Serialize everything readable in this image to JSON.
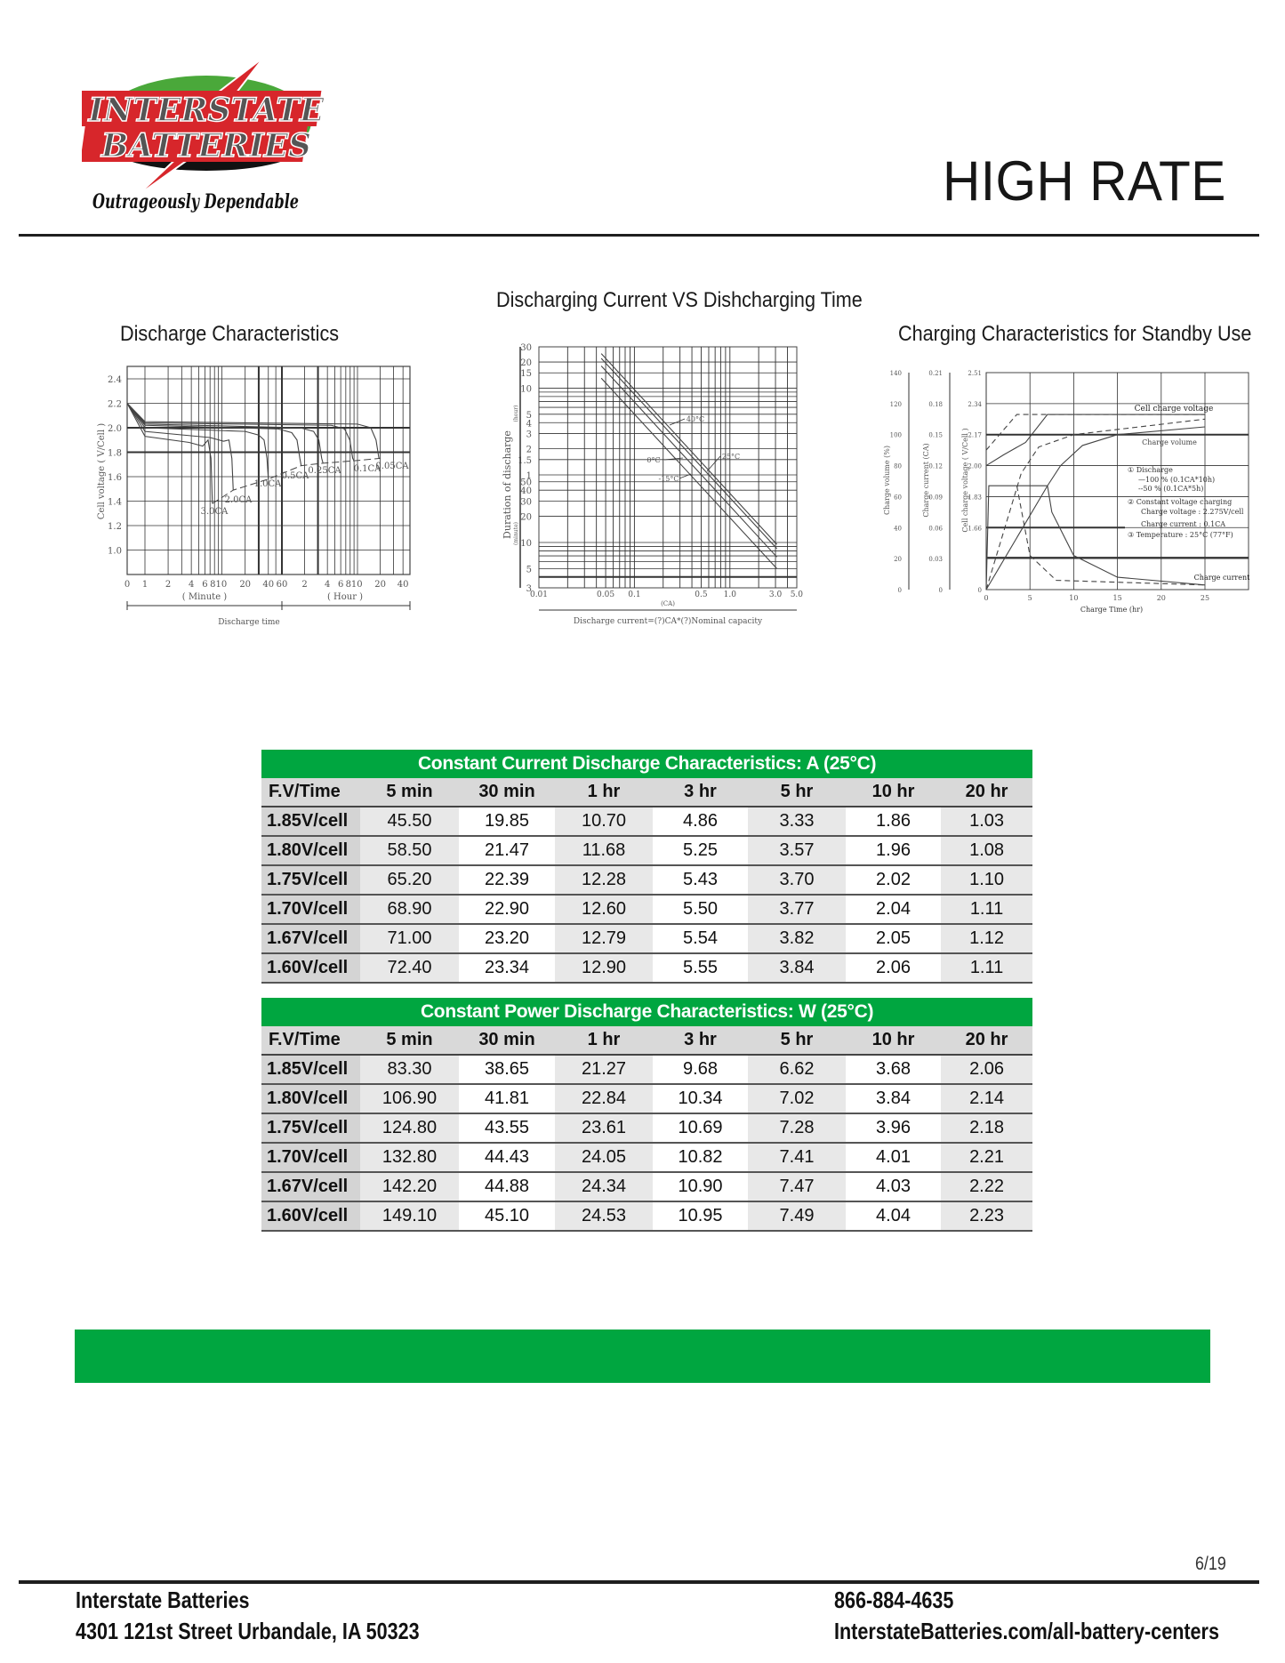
{
  "brand": {
    "logo_text_line1": "INTERSTATE",
    "logo_text_line2": "BATTERIES",
    "tagline": "Outrageously Dependable",
    "colors": {
      "red": "#d7262b",
      "green": "#4aa83a",
      "black": "#111111"
    }
  },
  "page_title": "HIGH RATE",
  "charts": {
    "discharge": {
      "title": "Discharge Characteristics",
      "ylabel": "Cell voltage ( V/Cell )",
      "yticks": [
        "2.4",
        "2.2",
        "2.0",
        "1.8",
        "1.6",
        "1.4",
        "1.2",
        "1.0"
      ],
      "xticks": [
        "0",
        "1",
        "2",
        "4",
        "6",
        "810",
        "20",
        "40",
        "60",
        "2",
        "4",
        "6",
        "810",
        "20",
        "40"
      ],
      "minute_label": "( Minute )",
      "hour_label": "( Hour )",
      "xlabel": "Discharge time",
      "curves": [
        "3.0CA",
        "2.0CA",
        "1.0CA",
        "0.5CA",
        "0.25CA",
        "0.1CA",
        "0.05CA"
      ]
    },
    "current_vs_time": {
      "title": "Discharging Current VS Dishcharging Time",
      "ylabel": "Duration of discharge",
      "hour_unit": "(hour)",
      "minute_unit": "(minute)",
      "yticks_hours": [
        "30",
        "20",
        "15",
        "10",
        "5",
        "4",
        "3",
        "2",
        "1.5",
        "1"
      ],
      "yticks_minutes": [
        "50",
        "40",
        "30",
        "20",
        "10",
        "5",
        "3"
      ],
      "xticks": [
        "0.01",
        "0.05",
        "0.1",
        "0.5",
        "1.0",
        "3.0",
        "5.0"
      ],
      "xunit": "(CA)",
      "xlabel": "Discharge current=(?)CA*(?)Nominal capacity",
      "curves": [
        "40°C",
        "25°C",
        "0°C",
        "-15°C"
      ]
    },
    "charging": {
      "title": "Charging Characteristics for Standby Use",
      "axis1_label": "Charge volume (%)",
      "axis1_ticks": [
        "140",
        "120",
        "100",
        "80",
        "60",
        "40",
        "20",
        "0"
      ],
      "axis2_label": "Charge current (CA)",
      "axis2_ticks": [
        "0.21",
        "0.18",
        "0.15",
        "0.12",
        "0.09",
        "0.06",
        "0.03",
        "0"
      ],
      "axis3_label": "Cell charge voltage ( V/Cell )",
      "axis3_ticks": [
        "2.51",
        "2.34",
        "2.17",
        "2.00",
        "1.83",
        "1.66",
        "",
        "0"
      ],
      "xticks": [
        "0",
        "5",
        "10",
        "15",
        "20",
        "25"
      ],
      "xlabel": "Charge Time (hr)",
      "label_voltage": "Cell charge voltage",
      "label_volume": "Charge volume",
      "label_current": "Charge current",
      "notes": [
        "① Discharge",
        "—100 % (0.1CA*10h)",
        "--50  % (0.1CA*5h)",
        "② Constant voltage charging",
        "Charge voltage : 2.275V/cell",
        "Charge current : 0.1CA",
        "③ Temperature : 25°C  (77°F)"
      ]
    }
  },
  "tables": [
    {
      "title": "Constant Current Discharge Characteristics: A (25°C)",
      "columns": [
        "F.V/Time",
        "5 min",
        "30 min",
        "1 hr",
        "3 hr",
        "5 hr",
        "10 hr",
        "20 hr"
      ],
      "rows": [
        [
          "1.85V/cell",
          "45.50",
          "19.85",
          "10.70",
          "4.86",
          "3.33",
          "1.86",
          "1.03"
        ],
        [
          "1.80V/cell",
          "58.50",
          "21.47",
          "11.68",
          "5.25",
          "3.57",
          "1.96",
          "1.08"
        ],
        [
          "1.75V/cell",
          "65.20",
          "22.39",
          "12.28",
          "5.43",
          "3.70",
          "2.02",
          "1.10"
        ],
        [
          "1.70V/cell",
          "68.90",
          "22.90",
          "12.60",
          "5.50",
          "3.77",
          "2.04",
          "1.11"
        ],
        [
          "1.67V/cell",
          "71.00",
          "23.20",
          "12.79",
          "5.54",
          "3.82",
          "2.05",
          "1.12"
        ],
        [
          "1.60V/cell",
          "72.40",
          "23.34",
          "12.90",
          "5.55",
          "3.84",
          "2.06",
          "1.11"
        ]
      ]
    },
    {
      "title": "Constant Power Discharge Characteristics: W (25°C)",
      "columns": [
        "F.V/Time",
        "5 min",
        "30 min",
        "1 hr",
        "3 hr",
        "5 hr",
        "10 hr",
        "20 hr"
      ],
      "rows": [
        [
          "1.85V/cell",
          "83.30",
          "38.65",
          "21.27",
          "9.68",
          "6.62",
          "3.68",
          "2.06"
        ],
        [
          "1.80V/cell",
          "106.90",
          "41.81",
          "22.84",
          "10.34",
          "7.02",
          "3.84",
          "2.14"
        ],
        [
          "1.75V/cell",
          "124.80",
          "43.55",
          "23.61",
          "10.69",
          "7.28",
          "3.96",
          "2.18"
        ],
        [
          "1.70V/cell",
          "132.80",
          "44.43",
          "24.05",
          "10.82",
          "7.41",
          "4.01",
          "2.21"
        ],
        [
          "1.67V/cell",
          "142.20",
          "44.88",
          "24.34",
          "10.90",
          "7.47",
          "4.03",
          "2.22"
        ],
        [
          "1.60V/cell",
          "149.10",
          "45.10",
          "24.53",
          "10.95",
          "7.49",
          "4.04",
          "2.23"
        ]
      ]
    }
  ],
  "accent_green": "#00a640",
  "page_number": "6/19",
  "footer": {
    "company": "Interstate Batteries",
    "address": "4301 121st Street  Urbandale, IA 50323",
    "phone": "866-884-4635",
    "website": "InterstateBatteries.com/all-battery-centers"
  }
}
